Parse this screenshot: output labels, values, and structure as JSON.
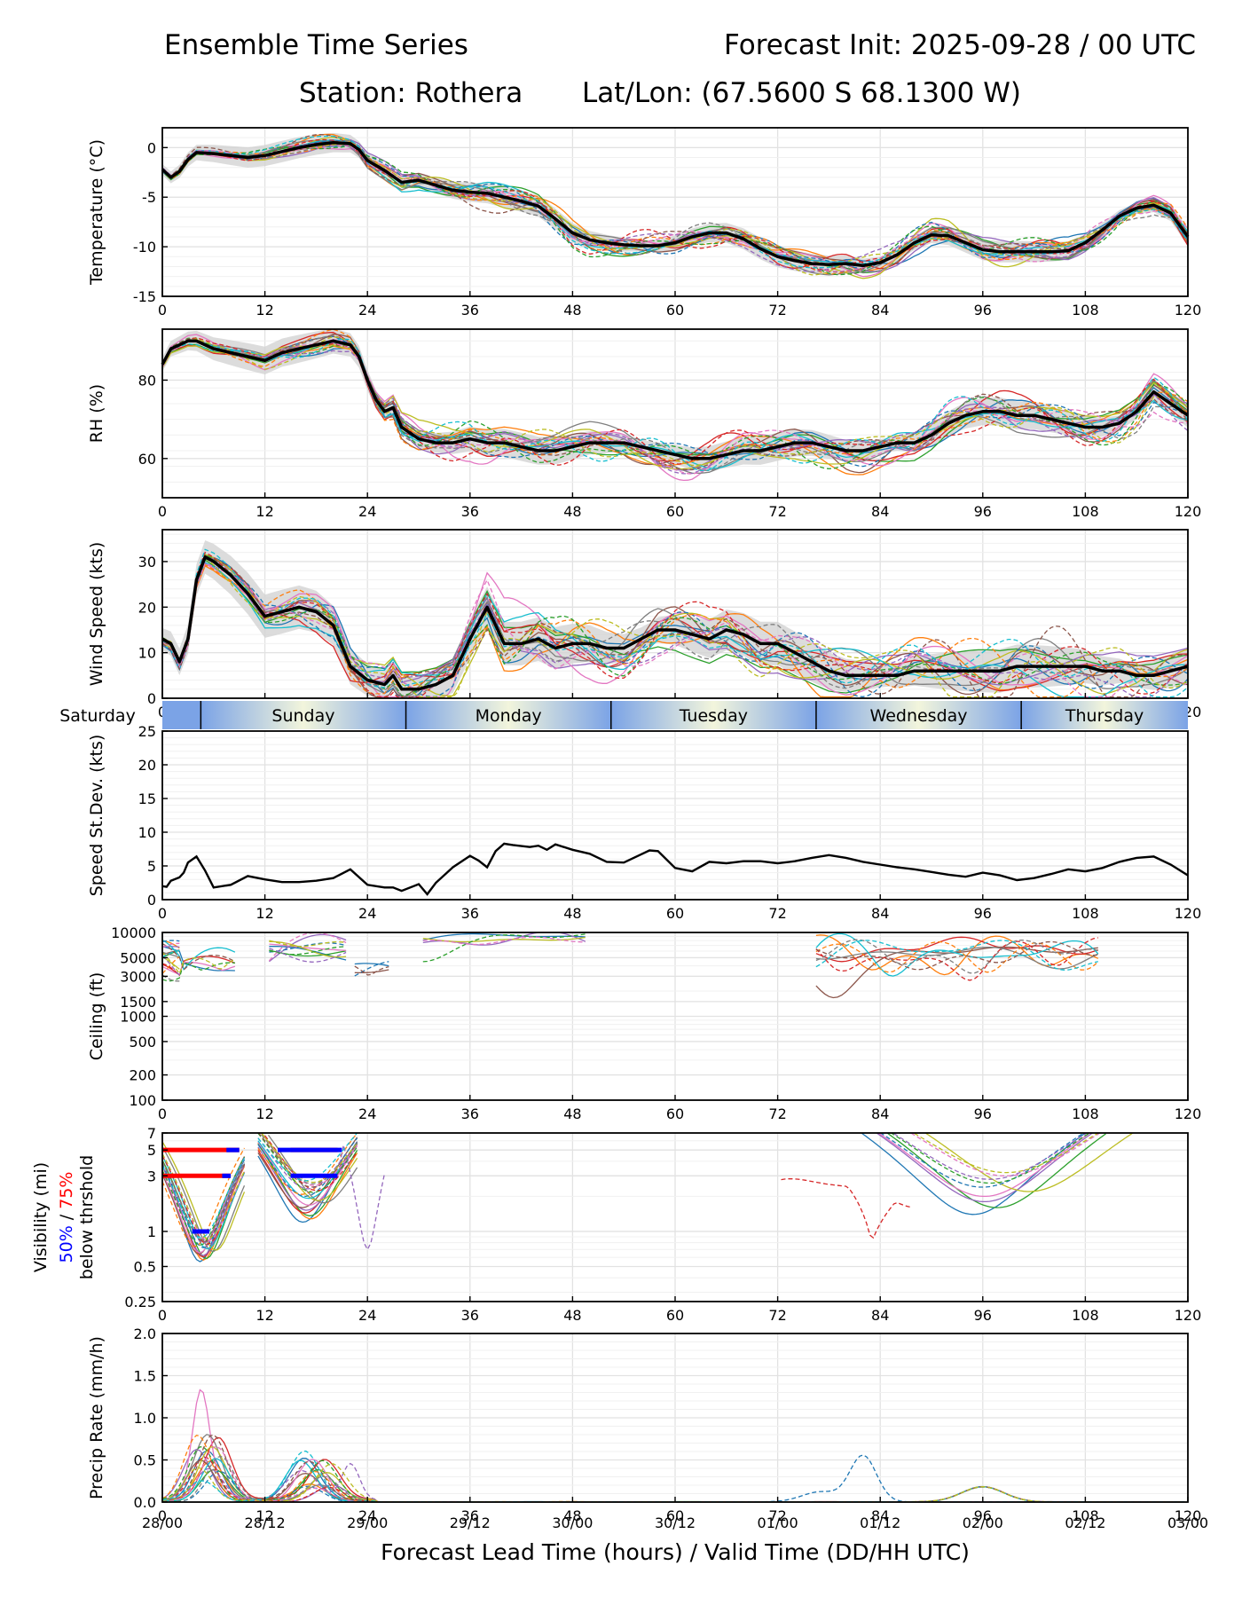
{
  "header": {
    "title_left": "Ensemble Time Series",
    "title_right": "Forecast Init: 2025-09-28 / 00 UTC",
    "station": "Station: Rothera",
    "latlon": "Lat/Lon: (67.5600 S 68.1300 W)"
  },
  "colors": {
    "mean": "#000000",
    "spread": "#d3d3d3",
    "grid": "#e2e2e2",
    "members": [
      "#1f77b4",
      "#ff7f0e",
      "#2ca02c",
      "#d62728",
      "#9467bd",
      "#8c564b",
      "#e377c2",
      "#7f7f7f",
      "#bcbd22",
      "#17becf"
    ],
    "vis_p50": "#0000ff",
    "vis_p75": "#ff0000",
    "day_band_dark": "#7ba3e6",
    "day_band_light": "#f2f5dc"
  },
  "chart_data": {
    "type": "line",
    "x_axis": {
      "label": "Forecast Lead Time (hours) / Valid Time (DD/HH UTC)",
      "range": [
        0,
        120
      ],
      "ticks": [
        0,
        12,
        24,
        36,
        48,
        60,
        72,
        84,
        96,
        108,
        120
      ],
      "valid_time_labels": [
        "28/00",
        "28/12",
        "29/00",
        "29/12",
        "30/00",
        "30/12",
        "01/00",
        "01/12",
        "02/00",
        "02/12",
        "03/00"
      ]
    },
    "day_bands": [
      {
        "name": "Saturday",
        "start": 0,
        "end": 4.5
      },
      {
        "name": "Sunday",
        "start": 4.5,
        "end": 28.5
      },
      {
        "name": "Monday",
        "start": 28.5,
        "end": 52.5
      },
      {
        "name": "Tuesday",
        "start": 52.5,
        "end": 76.5
      },
      {
        "name": "Wednesday",
        "start": 76.5,
        "end": 100.5
      },
      {
        "name": "Thursday",
        "start": 100.5,
        "end": 120
      }
    ],
    "panels": [
      {
        "id": "temperature",
        "ylabel": "Temperature (°C)",
        "scale": "linear",
        "ylim": [
          -15,
          2
        ],
        "yticks": [
          -15,
          -10,
          -5,
          0
        ],
        "ensemble_mean": {
          "x": [
            0,
            1,
            2,
            3,
            4,
            6,
            8,
            10,
            12,
            14,
            16,
            18,
            20,
            22,
            23,
            24,
            26,
            28,
            30,
            32,
            34,
            36,
            38,
            40,
            42,
            44,
            46,
            48,
            50,
            52,
            54,
            56,
            58,
            60,
            62,
            64,
            66,
            68,
            70,
            72,
            74,
            76,
            78,
            80,
            82,
            84,
            86,
            88,
            90,
            92,
            94,
            96,
            98,
            100,
            102,
            104,
            106,
            108,
            110,
            112,
            114,
            116,
            118,
            120
          ],
          "y": [
            -2.2,
            -3.0,
            -2.4,
            -1.2,
            -0.5,
            -0.6,
            -0.8,
            -1.0,
            -0.8,
            -0.4,
            0.0,
            0.3,
            0.5,
            0.4,
            -0.2,
            -1.3,
            -2.3,
            -3.5,
            -3.3,
            -3.8,
            -4.3,
            -4.5,
            -4.6,
            -5.0,
            -5.4,
            -5.9,
            -7.2,
            -8.6,
            -9.3,
            -9.6,
            -9.8,
            -9.9,
            -9.9,
            -9.6,
            -9.0,
            -8.6,
            -8.6,
            -9.2,
            -10.2,
            -11.0,
            -11.4,
            -11.7,
            -11.8,
            -11.7,
            -11.9,
            -11.6,
            -10.8,
            -9.6,
            -8.8,
            -8.9,
            -9.6,
            -10.3,
            -10.5,
            -10.5,
            -10.5,
            -10.5,
            -10.4,
            -9.6,
            -8.3,
            -6.9,
            -6.1,
            -5.8,
            -6.6,
            -9.0
          ]
        },
        "spread_halfwidth": 0.9,
        "member_count": 20
      },
      {
        "id": "rh",
        "ylabel": "RH (%)",
        "scale": "linear",
        "ylim": [
          50,
          93
        ],
        "yticks": [
          60,
          80
        ],
        "ensemble_mean": {
          "x": [
            0,
            1,
            2,
            3,
            4,
            6,
            8,
            10,
            12,
            14,
            16,
            18,
            20,
            22,
            23,
            24,
            25,
            26,
            27,
            28,
            30,
            32,
            34,
            36,
            38,
            40,
            42,
            44,
            46,
            48,
            50,
            52,
            54,
            56,
            58,
            60,
            62,
            64,
            66,
            68,
            70,
            72,
            74,
            76,
            78,
            80,
            82,
            84,
            86,
            88,
            90,
            92,
            94,
            96,
            98,
            100,
            102,
            104,
            106,
            108,
            110,
            112,
            114,
            116,
            118,
            120
          ],
          "y": [
            84,
            88,
            89,
            90,
            90,
            88,
            87,
            86,
            85,
            87,
            88,
            89,
            90,
            89,
            86,
            80,
            75,
            72,
            73,
            68,
            65,
            64,
            64,
            65,
            64,
            64,
            63,
            62,
            62,
            63,
            64,
            64,
            64,
            63,
            62,
            61,
            60,
            60,
            61,
            62,
            62,
            63,
            64,
            64,
            63,
            62,
            62,
            63,
            64,
            64,
            66,
            69,
            71,
            72,
            72,
            71,
            71,
            70,
            69,
            68,
            68,
            69,
            72,
            77,
            74,
            71
          ]
        },
        "spread_halfwidth": 3,
        "member_count": 20
      },
      {
        "id": "wind",
        "ylabel": "Wind Speed (kts)",
        "scale": "linear",
        "ylim": [
          0,
          37
        ],
        "yticks": [
          0,
          10,
          20,
          30
        ],
        "ensemble_mean": {
          "x": [
            0,
            1,
            2,
            3,
            4,
            5,
            6,
            8,
            10,
            12,
            14,
            16,
            18,
            20,
            22,
            24,
            26,
            27,
            28,
            30,
            32,
            34,
            36,
            38,
            40,
            42,
            44,
            46,
            48,
            50,
            52,
            54,
            56,
            58,
            60,
            62,
            64,
            66,
            68,
            70,
            72,
            74,
            76,
            78,
            80,
            82,
            84,
            86,
            88,
            90,
            92,
            94,
            96,
            98,
            100,
            102,
            104,
            106,
            108,
            110,
            112,
            114,
            116,
            118,
            120
          ],
          "y": [
            13,
            12,
            8,
            13,
            26,
            31,
            30,
            27,
            23,
            18,
            19,
            20,
            19,
            16,
            7,
            4,
            3,
            5,
            2,
            2,
            3,
            5,
            13,
            20,
            12,
            12,
            13,
            11,
            12,
            12,
            11,
            11,
            13,
            15,
            15,
            14,
            13,
            15,
            14,
            12,
            12,
            10,
            8,
            6,
            5,
            5,
            5,
            5,
            6,
            6,
            6,
            6,
            6,
            6,
            7,
            7,
            7,
            7,
            7,
            6,
            6,
            5,
            5,
            6,
            7
          ]
        },
        "spread_halfwidth": 4,
        "member_count": 20
      },
      {
        "id": "speed_stdev",
        "ylabel": "Speed St.Dev. (kts)",
        "scale": "linear",
        "ylim": [
          0,
          25
        ],
        "yticks": [
          0,
          5,
          10,
          15,
          20,
          25
        ],
        "series": {
          "x": [
            0,
            0.5,
            1,
            2,
            2.5,
            3,
            4,
            5,
            6,
            8,
            10,
            12,
            14,
            16,
            18,
            20,
            22,
            24,
            26,
            27,
            28,
            30,
            31,
            32,
            34,
            36,
            37,
            38,
            39,
            40,
            41,
            43,
            44,
            45,
            46,
            48,
            50,
            52,
            54,
            56,
            57,
            58,
            60,
            62,
            64,
            66,
            68,
            70,
            72,
            74,
            76,
            78,
            80,
            82,
            84,
            86,
            88,
            90,
            92,
            94,
            96,
            98,
            100,
            102,
            104,
            106,
            108,
            110,
            112,
            114,
            116,
            118,
            120
          ],
          "y": [
            2.0,
            1.9,
            2.8,
            3.3,
            4.0,
            5.5,
            6.4,
            4.3,
            1.8,
            2.2,
            3.5,
            3.0,
            2.6,
            2.6,
            2.8,
            3.2,
            4.5,
            2.2,
            1.8,
            1.8,
            1.3,
            2.3,
            0.8,
            2.5,
            4.8,
            6.5,
            5.8,
            4.8,
            7.2,
            8.3,
            8.1,
            7.8,
            8.0,
            7.4,
            8.2,
            7.4,
            6.8,
            5.6,
            5.5,
            6.7,
            7.3,
            7.2,
            4.7,
            4.2,
            5.6,
            5.4,
            5.7,
            5.7,
            5.4,
            5.7,
            6.2,
            6.6,
            6.2,
            5.6,
            5.2,
            4.8,
            4.5,
            4.1,
            3.7,
            3.4,
            4.0,
            3.6,
            2.9,
            3.2,
            3.8,
            4.5,
            4.2,
            4.7,
            5.6,
            6.2,
            6.4,
            5.2,
            3.6
          ]
        }
      },
      {
        "id": "ceiling",
        "ylabel": "Ceiling (ft)",
        "scale": "log",
        "ylim": [
          100,
          10000
        ],
        "yticks": [
          100,
          200,
          500,
          1000,
          1500,
          3000,
          5000,
          10000
        ],
        "member_count": 20
      },
      {
        "id": "visibility",
        "ylabel_lines": [
          "Visibility (mi)",
          "50% / 75%",
          "below thrshold"
        ],
        "ylabel_p50": "50%",
        "ylabel_sep": " / ",
        "ylabel_p75": "75%",
        "scale": "log",
        "ylim": [
          0.25,
          7
        ],
        "yticks": [
          0.25,
          0.5,
          1,
          3,
          5,
          7
        ],
        "threshold_segments": [
          {
            "level": 5,
            "color": "red",
            "x": [
              0,
              9
            ]
          },
          {
            "level": 5,
            "color": "blue",
            "x": [
              7.5,
              9
            ]
          },
          {
            "level": 3,
            "color": "red",
            "x": [
              0,
              8
            ]
          },
          {
            "level": 3,
            "color": "blue",
            "x": [
              7,
              8
            ]
          },
          {
            "level": 1,
            "color": "blue",
            "x": [
              3.5,
              5.5
            ]
          },
          {
            "level": 5,
            "color": "blue",
            "x": [
              13.5,
              21
            ]
          },
          {
            "level": 5,
            "color": "red",
            "x": [
              15,
              20.5
            ]
          },
          {
            "level": 3,
            "color": "blue",
            "x": [
              15,
              20.5
            ]
          }
        ],
        "member_count": 20
      },
      {
        "id": "precip",
        "ylabel": "Precip Rate (mm/h)",
        "scale": "linear",
        "ylim": [
          0,
          2.0
        ],
        "yticks": [
          0.0,
          0.5,
          1.0,
          1.5,
          2.0
        ],
        "member_count": 20
      }
    ]
  }
}
